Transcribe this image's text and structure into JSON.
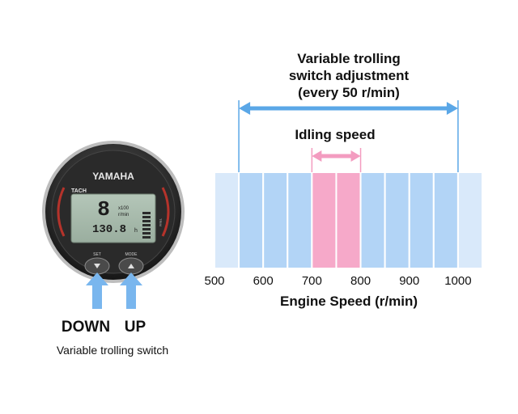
{
  "gauge": {
    "brand": "YAMAHA",
    "mode_label": "TACH",
    "digit": "8",
    "unit_multiplier": "x100",
    "unit": "r/min",
    "hours_value": "130.8",
    "hours_unit": "h",
    "set_label": "SET",
    "mode_button_label": "MODE",
    "side_label": "TRIM"
  },
  "buttons": {
    "down_label": "DOWN",
    "up_label": "UP"
  },
  "switch_caption": "Variable trolling switch",
  "adjustment": {
    "title_line1": "Variable trolling",
    "title_line2": "switch adjustment",
    "title_line3": "(every 50 r/min)",
    "range": [
      550,
      1000
    ]
  },
  "idling": {
    "label": "Idling speed",
    "range": [
      700,
      800
    ]
  },
  "scale": {
    "start": 500,
    "end": 1050,
    "step": 50,
    "tick_labels": [
      "500",
      "600",
      "700",
      "800",
      "900",
      "1000"
    ],
    "xlabel": "Engine Speed (r/min)"
  },
  "colors": {
    "band_light": "#d9e9fa",
    "band_blue": "#b2d4f6",
    "band_pink": "#f6a9c9",
    "arrow_blue": "#5aa7e7",
    "arrow_pink": "#f39cc0"
  }
}
